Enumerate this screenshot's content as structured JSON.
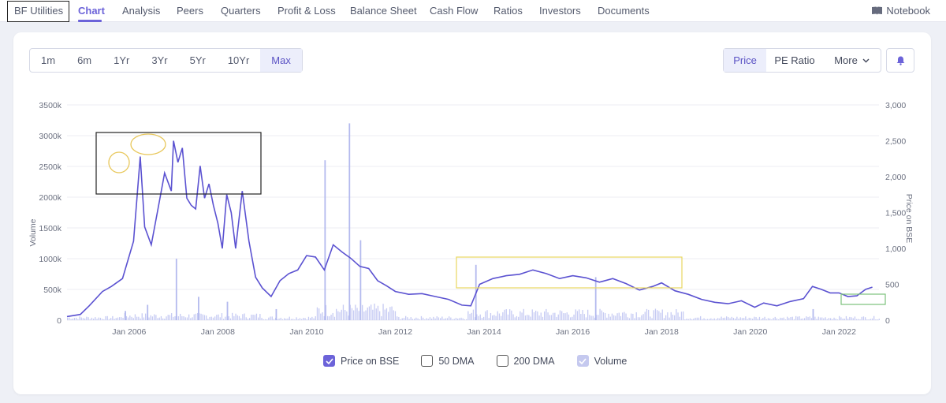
{
  "nav": {
    "company": "BF Utilities",
    "tabs": [
      "Chart",
      "Analysis",
      "Peers",
      "Quarters",
      "Profit & Loss",
      "Balance Sheet",
      "Cash Flow",
      "Ratios",
      "Investors",
      "Documents"
    ],
    "active_tab": "Chart",
    "notebook": "Notebook",
    "notebook_icon": "book-icon"
  },
  "ranges": [
    "1m",
    "6m",
    "1Yr",
    "3Yr",
    "5Yr",
    "10Yr",
    "Max"
  ],
  "active_range": "Max",
  "metrics": {
    "price": "Price",
    "pe": "PE Ratio",
    "more": "More"
  },
  "active_metric": "Price",
  "bell_icon": "bell-icon",
  "legend": {
    "price": "Price on BSE",
    "dma50": "50 DMA",
    "dma200": "200 DMA",
    "volume": "Volume"
  },
  "legend_state": {
    "price": true,
    "dma50": false,
    "dma200": false,
    "volume": true
  },
  "colors": {
    "accent": "#6c63d9",
    "price_line": "#5b52d1",
    "volume_bars": "#b9bff0"
  },
  "chart_data": {
    "type": "line",
    "ylabel_left": "Volume",
    "ylabel_right": "Price on BSE",
    "y_left_ticks": [
      "0",
      "500k",
      "1000k",
      "1500k",
      "2000k",
      "2500k",
      "3000k",
      "3500k"
    ],
    "y_right_ticks": [
      "0",
      "500",
      "1,000",
      "1,500",
      "2,000",
      "2,500",
      "3,000"
    ],
    "x_ticks": [
      "Jan 2006",
      "Jan 2008",
      "Jan 2010",
      "Jan 2012",
      "Jan 2014",
      "Jan 2016",
      "Jan 2018",
      "Jan 2020",
      "Jan 2022"
    ],
    "y_left_range": [
      0,
      3500000
    ],
    "y_right_range": [
      0,
      3000
    ],
    "x_range": [
      2004.6,
      2022.9
    ],
    "series": [
      {
        "name": "Price on BSE",
        "x": [
          2004.6,
          2004.9,
          2005.1,
          2005.4,
          2005.6,
          2005.85,
          2006.1,
          2006.25,
          2006.35,
          2006.5,
          2006.65,
          2006.8,
          2006.95,
          2007.0,
          2007.1,
          2007.2,
          2007.3,
          2007.4,
          2007.5,
          2007.6,
          2007.7,
          2007.8,
          2007.9,
          2008.0,
          2008.1,
          2008.2,
          2008.3,
          2008.4,
          2008.55,
          2008.7,
          2008.85,
          2009.0,
          2009.2,
          2009.4,
          2009.6,
          2009.8,
          2010.0,
          2010.2,
          2010.4,
          2010.6,
          2010.8,
          2011.0,
          2011.2,
          2011.4,
          2011.6,
          2011.8,
          2012.0,
          2012.3,
          2012.6,
          2012.9,
          2013.2,
          2013.5,
          2013.7,
          2013.9,
          2014.2,
          2014.5,
          2014.8,
          2015.1,
          2015.4,
          2015.7,
          2016.0,
          2016.3,
          2016.6,
          2016.9,
          2017.2,
          2017.5,
          2017.8,
          2018.0,
          2018.3,
          2018.6,
          2018.9,
          2019.2,
          2019.5,
          2019.8,
          2020.1,
          2020.3,
          2020.6,
          2020.9,
          2021.2,
          2021.4,
          2021.6,
          2021.8,
          2022.0,
          2022.2,
          2022.4,
          2022.6,
          2022.75
        ],
        "y": [
          50,
          80,
          200,
          400,
          470,
          580,
          1100,
          2280,
          1300,
          1050,
          1550,
          2050,
          1800,
          2500,
          2200,
          2400,
          1700,
          1600,
          1550,
          2150,
          1700,
          1900,
          1600,
          1350,
          1000,
          1750,
          1500,
          1000,
          1800,
          1100,
          600,
          450,
          330,
          550,
          650,
          700,
          900,
          880,
          700,
          1050,
          950,
          860,
          750,
          720,
          550,
          480,
          400,
          360,
          370,
          330,
          290,
          210,
          200,
          500,
          580,
          620,
          640,
          700,
          650,
          580,
          620,
          590,
          530,
          580,
          510,
          420,
          470,
          520,
          410,
          360,
          290,
          250,
          230,
          270,
          180,
          240,
          200,
          260,
          300,
          470,
          430,
          380,
          380,
          330,
          340,
          430,
          460
        ]
      },
      {
        "name": "Volume",
        "note_type": "bar",
        "peaks_x": [
          2005.9,
          2006.4,
          2007.05,
          2007.55,
          2008.2,
          2009.3,
          2010.4,
          2010.95,
          2011.2,
          2013.8,
          2016.5,
          2021.4
        ],
        "peaks_y": [
          150000,
          250000,
          1000000,
          380000,
          300000,
          180000,
          2600000,
          3200000,
          1300000,
          900000,
          700000,
          180000
        ]
      }
    ]
  }
}
